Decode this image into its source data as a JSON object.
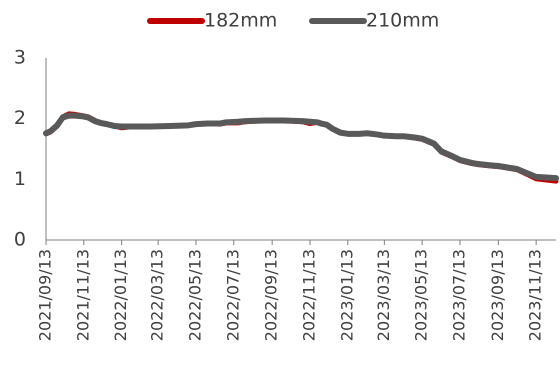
{
  "chart_data": {
    "type": "line",
    "title": "",
    "xlabel": "",
    "ylabel": "",
    "ylim": [
      0,
      3
    ],
    "y_ticks": [
      "0",
      "1",
      "2",
      "3"
    ],
    "x_range": [
      "2021/09/13",
      "2023/12/15"
    ],
    "x_tick_labels": [
      "2021/09/13",
      "2021/11/13",
      "2022/01/13",
      "2022/03/13",
      "2022/05/13",
      "2022/07/13",
      "2022/09/13",
      "2022/11/13",
      "2023/01/13",
      "2023/03/13",
      "2023/05/13",
      "2023/07/13",
      "2023/09/13",
      "2023/11/13"
    ],
    "grid": false,
    "legend_position": "top",
    "series": [
      {
        "name": "182mm",
        "color": "#c00000",
        "points": [
          [
            "2021/09/13",
            1.75
          ],
          [
            "2021/09/20",
            1.78
          ],
          [
            "2021/10/01",
            1.88
          ],
          [
            "2021/10/10",
            2.03
          ],
          [
            "2021/10/20",
            2.08
          ],
          [
            "2021/10/30",
            2.07
          ],
          [
            "2021/11/10",
            2.05
          ],
          [
            "2021/11/20",
            2.03
          ],
          [
            "2021/12/01",
            1.97
          ],
          [
            "2021/12/10",
            1.93
          ],
          [
            "2021/12/20",
            1.91
          ],
          [
            "2022/01/01",
            1.88
          ],
          [
            "2022/01/13",
            1.85
          ],
          [
            "2022/02/01",
            1.87
          ],
          [
            "2022/03/01",
            1.87
          ],
          [
            "2022/04/01",
            1.88
          ],
          [
            "2022/05/01",
            1.89
          ],
          [
            "2022/05/13",
            1.91
          ],
          [
            "2022/06/01",
            1.92
          ],
          [
            "2022/06/20",
            1.91
          ],
          [
            "2022/07/01",
            1.93
          ],
          [
            "2022/07/20",
            1.93
          ],
          [
            "2022/08/01",
            1.95
          ],
          [
            "2022/09/01",
            1.97
          ],
          [
            "2022/10/01",
            1.97
          ],
          [
            "2022/11/01",
            1.95
          ],
          [
            "2022/11/13",
            1.92
          ],
          [
            "2022/11/25",
            1.94
          ],
          [
            "2022/12/01",
            1.92
          ],
          [
            "2022/12/10",
            1.9
          ],
          [
            "2022/12/20",
            1.83
          ],
          [
            "2023/01/01",
            1.77
          ],
          [
            "2023/01/13",
            1.75
          ],
          [
            "2023/02/01",
            1.75
          ],
          [
            "2023/02/13",
            1.76
          ],
          [
            "2023/03/01",
            1.74
          ],
          [
            "2023/03/13",
            1.72
          ],
          [
            "2023/04/01",
            1.71
          ],
          [
            "2023/04/13",
            1.71
          ],
          [
            "2023/05/01",
            1.68
          ],
          [
            "2023/05/13",
            1.66
          ],
          [
            "2023/06/01",
            1.58
          ],
          [
            "2023/06/13",
            1.45
          ],
          [
            "2023/07/01",
            1.37
          ],
          [
            "2023/07/13",
            1.31
          ],
          [
            "2023/08/01",
            1.26
          ],
          [
            "2023/08/13",
            1.24
          ],
          [
            "2023/09/01",
            1.22
          ],
          [
            "2023/09/13",
            1.21
          ],
          [
            "2023/10/01",
            1.18
          ],
          [
            "2023/10/13",
            1.16
          ],
          [
            "2023/11/01",
            1.07
          ],
          [
            "2023/11/13",
            1.01
          ],
          [
            "2023/12/15",
            0.97
          ]
        ]
      },
      {
        "name": "210mm",
        "color": "#595959",
        "points": [
          [
            "2021/09/13",
            1.76
          ],
          [
            "2021/09/20",
            1.79
          ],
          [
            "2021/10/01",
            1.89
          ],
          [
            "2021/10/10",
            2.02
          ],
          [
            "2021/10/20",
            2.05
          ],
          [
            "2021/10/30",
            2.05
          ],
          [
            "2021/11/10",
            2.04
          ],
          [
            "2021/11/20",
            2.02
          ],
          [
            "2021/12/01",
            1.96
          ],
          [
            "2021/12/10",
            1.93
          ],
          [
            "2021/12/20",
            1.91
          ],
          [
            "2022/01/01",
            1.88
          ],
          [
            "2022/01/13",
            1.87
          ],
          [
            "2022/02/01",
            1.87
          ],
          [
            "2022/03/01",
            1.87
          ],
          [
            "2022/04/01",
            1.88
          ],
          [
            "2022/05/01",
            1.89
          ],
          [
            "2022/05/13",
            1.91
          ],
          [
            "2022/06/01",
            1.92
          ],
          [
            "2022/06/20",
            1.92
          ],
          [
            "2022/07/01",
            1.94
          ],
          [
            "2022/07/20",
            1.95
          ],
          [
            "2022/08/01",
            1.96
          ],
          [
            "2022/09/01",
            1.97
          ],
          [
            "2022/10/01",
            1.97
          ],
          [
            "2022/11/01",
            1.96
          ],
          [
            "2022/11/13",
            1.95
          ],
          [
            "2022/11/25",
            1.94
          ],
          [
            "2022/12/01",
            1.92
          ],
          [
            "2022/12/10",
            1.9
          ],
          [
            "2022/12/20",
            1.83
          ],
          [
            "2023/01/01",
            1.77
          ],
          [
            "2023/01/13",
            1.75
          ],
          [
            "2023/02/01",
            1.75
          ],
          [
            "2023/02/13",
            1.76
          ],
          [
            "2023/03/01",
            1.74
          ],
          [
            "2023/03/13",
            1.72
          ],
          [
            "2023/04/01",
            1.71
          ],
          [
            "2023/04/13",
            1.71
          ],
          [
            "2023/05/01",
            1.69
          ],
          [
            "2023/05/13",
            1.67
          ],
          [
            "2023/06/01",
            1.59
          ],
          [
            "2023/06/13",
            1.46
          ],
          [
            "2023/07/01",
            1.38
          ],
          [
            "2023/07/13",
            1.32
          ],
          [
            "2023/08/01",
            1.27
          ],
          [
            "2023/08/13",
            1.25
          ],
          [
            "2023/09/01",
            1.23
          ],
          [
            "2023/09/13",
            1.22
          ],
          [
            "2023/10/01",
            1.19
          ],
          [
            "2023/10/13",
            1.17
          ],
          [
            "2023/11/01",
            1.09
          ],
          [
            "2023/11/13",
            1.04
          ],
          [
            "2023/12/15",
            1.02
          ]
        ]
      }
    ]
  }
}
